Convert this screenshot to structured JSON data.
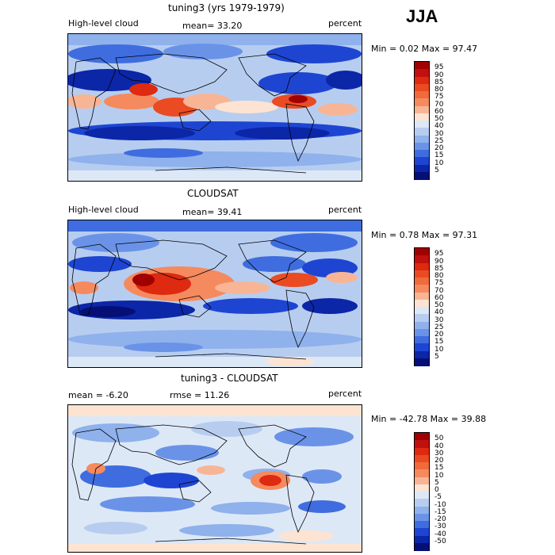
{
  "season": "JJA",
  "panels": [
    {
      "title": "tuning3 (yrs 1979-1979)",
      "left_label": "High-level cloud",
      "center_label": "mean=  33.20",
      "right_label": "percent",
      "minmax": "Min =    0.02 Max =   97.47",
      "levels": [
        "95",
        "90",
        "85",
        "80",
        "75",
        "70",
        "60",
        "50",
        "40",
        "30",
        "25",
        "20",
        "15",
        "10",
        "5"
      ],
      "colors": [
        "#a00000",
        "#c01010",
        "#dd2a10",
        "#ea4b22",
        "#f06a3c",
        "#f58a5e",
        "#f8b595",
        "#fde3d2",
        "#dde8f7",
        "#b7cdf0",
        "#8fb1ec",
        "#6a93e8",
        "#3f6ddf",
        "#1e45d2",
        "#0c26a8",
        "#050f75"
      ]
    },
    {
      "title": "CLOUDSAT",
      "left_label": "High-level cloud",
      "center_label": "mean=  39.41",
      "right_label": "percent",
      "minmax": "Min =    0.78 Max =   97.31",
      "levels": [
        "95",
        "90",
        "85",
        "80",
        "75",
        "70",
        "60",
        "50",
        "40",
        "30",
        "25",
        "20",
        "15",
        "10",
        "5"
      ],
      "colors": [
        "#a00000",
        "#c01010",
        "#dd2a10",
        "#ea4b22",
        "#f06a3c",
        "#f58a5e",
        "#f8b595",
        "#fde3d2",
        "#dde8f7",
        "#b7cdf0",
        "#8fb1ec",
        "#6a93e8",
        "#3f6ddf",
        "#1e45d2",
        "#0c26a8",
        "#050f75"
      ]
    },
    {
      "title": "tuning3 - CLOUDSAT",
      "left_label": "mean =   -6.20",
      "center_label": "rmse =   11.26",
      "right_label": "percent",
      "minmax": "Min = -42.78 Max =   39.88",
      "levels": [
        "50",
        "40",
        "30",
        "20",
        "15",
        "10",
        "5",
        "0",
        "-5",
        "-10",
        "-15",
        "-20",
        "-30",
        "-40",
        "-50"
      ],
      "colors": [
        "#a00000",
        "#c01010",
        "#dd2a10",
        "#ea4b22",
        "#f06a3c",
        "#f58a5e",
        "#f8b595",
        "#fde3d2",
        "#dde8f7",
        "#b7cdf0",
        "#8fb1ec",
        "#6a93e8",
        "#3f6ddf",
        "#1e45d2",
        "#0c26a8",
        "#050f75"
      ]
    }
  ]
}
